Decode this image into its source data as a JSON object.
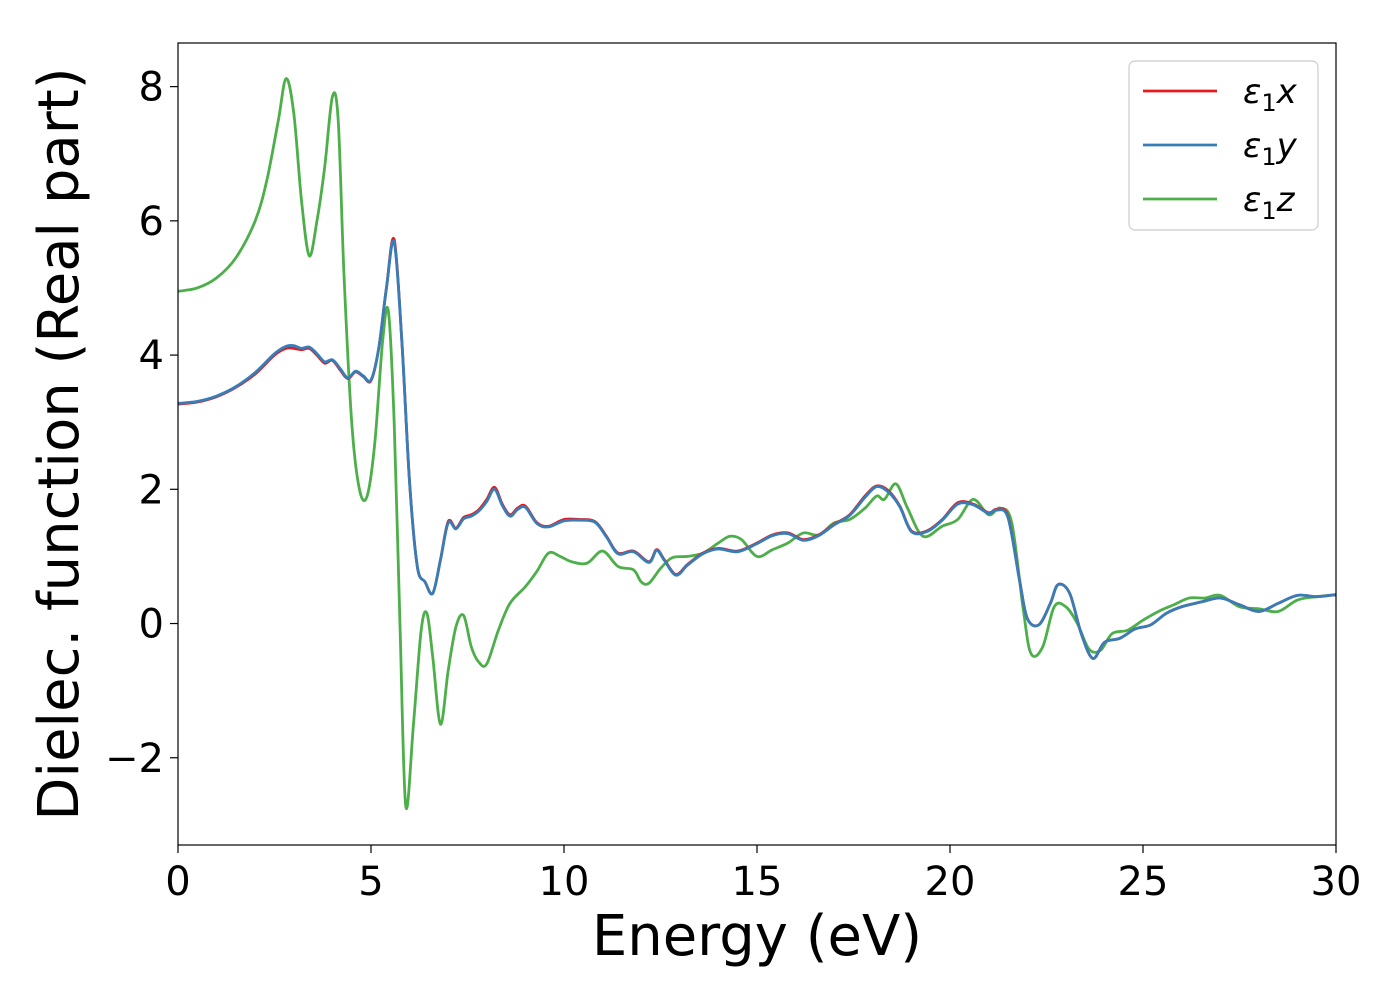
{
  "chart_data": {
    "type": "line",
    "xlabel": "Energy (eV)",
    "ylabel": "Dielec. function (Real part)",
    "xlim": [
      0,
      30
    ],
    "ylim": [
      -3.3,
      8.65
    ],
    "xticks": [
      0,
      5,
      10,
      15,
      20,
      25,
      30
    ],
    "xtick_labels": [
      "0",
      "5",
      "10",
      "15",
      "20",
      "25",
      "30"
    ],
    "yticks": [
      -2,
      0,
      2,
      4,
      6,
      8
    ],
    "ytick_labels": [
      "−2",
      "0",
      "2",
      "4",
      "6",
      "8"
    ],
    "grid": false,
    "legend_position": "top-right",
    "series": [
      {
        "legend": {
          "base": "ε",
          "sub": "1",
          "axis": "x"
        },
        "color": "#e41a1c",
        "x": [
          0,
          0.5,
          1,
          1.5,
          2,
          2.5,
          2.8,
          3.0,
          3.2,
          3.4,
          3.6,
          3.8,
          4.0,
          4.2,
          4.4,
          4.6,
          4.8,
          5.0,
          5.2,
          5.4,
          5.6,
          5.8,
          6.0,
          6.2,
          6.4,
          6.6,
          6.8,
          7.0,
          7.2,
          7.4,
          7.6,
          7.8,
          8.0,
          8.2,
          8.4,
          8.6,
          8.8,
          9.0,
          9.3,
          9.6,
          10.0,
          10.4,
          10.8,
          11.1,
          11.4,
          11.8,
          12.2,
          12.4,
          12.6,
          12.9,
          13.2,
          13.6,
          14.0,
          14.5,
          15.0,
          15.4,
          15.8,
          16.2,
          16.6,
          17.0,
          17.4,
          17.8,
          18.1,
          18.4,
          18.7,
          19.0,
          19.4,
          19.8,
          20.2,
          20.6,
          21.0,
          21.2,
          21.5,
          21.8,
          22.0,
          22.3,
          22.6,
          22.8,
          23.1,
          23.4,
          23.7,
          24.0,
          24.4,
          24.8,
          25.2,
          25.6,
          26.0,
          26.5,
          27.0,
          27.5,
          28.0,
          28.5,
          29.0,
          29.5,
          30.0
        ],
        "y": [
          3.27,
          3.3,
          3.38,
          3.52,
          3.72,
          4.0,
          4.1,
          4.1,
          4.08,
          4.1,
          4.0,
          3.88,
          3.92,
          3.78,
          3.65,
          3.75,
          3.68,
          3.62,
          4.1,
          5.0,
          5.72,
          4.2,
          2.1,
          0.85,
          0.62,
          0.45,
          0.95,
          1.52,
          1.42,
          1.58,
          1.62,
          1.7,
          1.85,
          2.03,
          1.78,
          1.62,
          1.72,
          1.75,
          1.5,
          1.45,
          1.55,
          1.55,
          1.52,
          1.3,
          1.05,
          1.08,
          0.92,
          1.1,
          0.95,
          0.73,
          0.88,
          1.05,
          1.12,
          1.08,
          1.2,
          1.32,
          1.35,
          1.25,
          1.32,
          1.48,
          1.62,
          1.9,
          2.05,
          1.98,
          1.75,
          1.38,
          1.38,
          1.55,
          1.8,
          1.78,
          1.65,
          1.7,
          1.6,
          0.65,
          0.08,
          -0.02,
          0.3,
          0.58,
          0.45,
          -0.15,
          -0.52,
          -0.28,
          -0.22,
          -0.08,
          -0.02,
          0.15,
          0.25,
          0.32,
          0.38,
          0.28,
          0.18,
          0.3,
          0.42,
          0.4,
          0.43
        ]
      },
      {
        "legend": {
          "base": "ε",
          "sub": "1",
          "axis": "y"
        },
        "color": "#377eb8",
        "x": [
          0,
          0.5,
          1,
          1.5,
          2,
          2.5,
          2.8,
          3.0,
          3.2,
          3.4,
          3.6,
          3.8,
          4.0,
          4.2,
          4.4,
          4.6,
          4.8,
          5.0,
          5.2,
          5.4,
          5.6,
          5.8,
          6.0,
          6.2,
          6.4,
          6.6,
          6.8,
          7.0,
          7.2,
          7.4,
          7.6,
          7.8,
          8.0,
          8.2,
          8.4,
          8.6,
          8.8,
          9.0,
          9.3,
          9.6,
          10.0,
          10.4,
          10.8,
          11.1,
          11.4,
          11.8,
          12.2,
          12.4,
          12.6,
          12.9,
          13.2,
          13.6,
          14.0,
          14.5,
          15.0,
          15.4,
          15.8,
          16.2,
          16.6,
          17.0,
          17.4,
          17.8,
          18.1,
          18.4,
          18.7,
          19.0,
          19.4,
          19.8,
          20.2,
          20.6,
          21.0,
          21.2,
          21.5,
          21.8,
          22.0,
          22.3,
          22.6,
          22.8,
          23.1,
          23.4,
          23.7,
          24.0,
          24.4,
          24.8,
          25.2,
          25.6,
          26.0,
          26.5,
          27.0,
          27.5,
          28.0,
          28.5,
          29.0,
          29.5,
          30.0
        ],
        "y": [
          3.28,
          3.31,
          3.39,
          3.53,
          3.74,
          4.02,
          4.13,
          4.14,
          4.1,
          4.12,
          4.02,
          3.9,
          3.93,
          3.8,
          3.66,
          3.76,
          3.69,
          3.63,
          4.1,
          5.0,
          5.68,
          4.2,
          2.1,
          0.85,
          0.62,
          0.45,
          0.95,
          1.5,
          1.41,
          1.56,
          1.6,
          1.68,
          1.82,
          2.0,
          1.76,
          1.6,
          1.7,
          1.73,
          1.49,
          1.44,
          1.53,
          1.54,
          1.51,
          1.29,
          1.04,
          1.07,
          0.91,
          1.09,
          0.94,
          0.72,
          0.87,
          1.04,
          1.11,
          1.07,
          1.19,
          1.31,
          1.34,
          1.24,
          1.31,
          1.47,
          1.61,
          1.88,
          2.04,
          1.96,
          1.74,
          1.37,
          1.37,
          1.54,
          1.78,
          1.77,
          1.64,
          1.69,
          1.58,
          0.65,
          0.08,
          -0.02,
          0.3,
          0.58,
          0.45,
          -0.15,
          -0.52,
          -0.28,
          -0.22,
          -0.08,
          -0.02,
          0.15,
          0.25,
          0.32,
          0.38,
          0.28,
          0.18,
          0.3,
          0.42,
          0.4,
          0.43
        ]
      },
      {
        "legend": {
          "base": "ε",
          "sub": "1",
          "axis": "z"
        },
        "color": "#4daf4a",
        "x": [
          0,
          0.5,
          1,
          1.5,
          2,
          2.3,
          2.6,
          2.8,
          3.0,
          3.2,
          3.4,
          3.6,
          3.8,
          4.0,
          4.15,
          4.3,
          4.5,
          4.7,
          4.9,
          5.1,
          5.3,
          5.45,
          5.6,
          5.75,
          5.9,
          6.1,
          6.3,
          6.45,
          6.6,
          6.8,
          7.0,
          7.2,
          7.4,
          7.6,
          7.8,
          8.0,
          8.3,
          8.6,
          9.0,
          9.3,
          9.6,
          9.9,
          10.2,
          10.6,
          11.0,
          11.4,
          11.8,
          12.0,
          12.2,
          12.5,
          12.8,
          13.2,
          13.6,
          14.0,
          14.3,
          14.6,
          15.0,
          15.4,
          15.8,
          16.2,
          16.6,
          17.0,
          17.4,
          17.8,
          18.1,
          18.3,
          18.6,
          18.9,
          19.3,
          19.8,
          20.2,
          20.6,
          21.0,
          21.3,
          21.6,
          21.9,
          22.1,
          22.4,
          22.7,
          23.0,
          23.3,
          23.6,
          23.9,
          24.2,
          24.6,
          25.0,
          25.4,
          25.8,
          26.2,
          26.6,
          27.0,
          27.5,
          28.0,
          28.5,
          29.0,
          29.5,
          30.0
        ],
        "y": [
          4.95,
          5.0,
          5.15,
          5.45,
          6.0,
          6.6,
          7.5,
          8.12,
          7.6,
          6.3,
          5.48,
          6.0,
          6.8,
          7.85,
          7.5,
          5.2,
          3.0,
          2.0,
          1.9,
          2.7,
          4.2,
          4.65,
          3.0,
          0.0,
          -2.72,
          -1.5,
          -0.1,
          0.15,
          -0.5,
          -1.5,
          -0.7,
          -0.05,
          0.12,
          -0.35,
          -0.58,
          -0.6,
          -0.1,
          0.3,
          0.55,
          0.78,
          1.05,
          1.0,
          0.92,
          0.9,
          1.08,
          0.85,
          0.8,
          0.62,
          0.6,
          0.82,
          0.98,
          1.0,
          1.05,
          1.2,
          1.3,
          1.25,
          1.0,
          1.1,
          1.2,
          1.35,
          1.32,
          1.5,
          1.55,
          1.72,
          1.9,
          1.85,
          2.08,
          1.72,
          1.3,
          1.45,
          1.55,
          1.85,
          1.62,
          1.72,
          1.5,
          0.2,
          -0.45,
          -0.35,
          0.25,
          0.25,
          0.0,
          -0.38,
          -0.4,
          -0.15,
          -0.1,
          0.05,
          0.18,
          0.28,
          0.38,
          0.38,
          0.42,
          0.25,
          0.22,
          0.18,
          0.35,
          0.4,
          0.43
        ]
      }
    ]
  }
}
